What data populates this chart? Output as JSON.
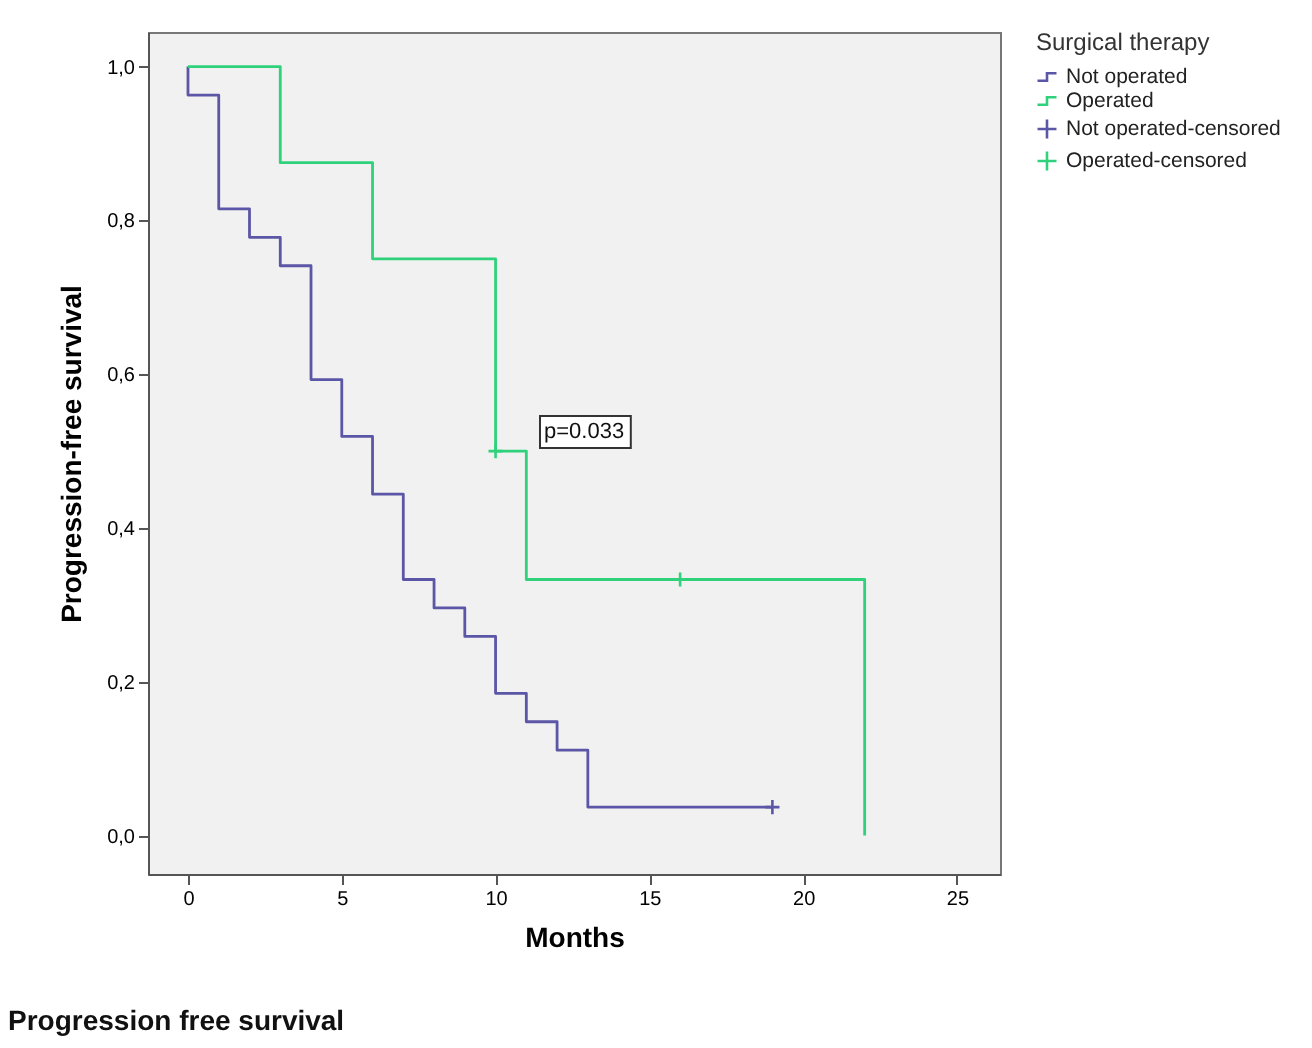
{
  "chart_data": {
    "type": "step",
    "xlabel": "Months",
    "ylabel": "Progression-free survival",
    "legend_title": "Surgical therapy",
    "legend": "top right",
    "grid": false,
    "xlim": [
      -1.3,
      26.4
    ],
    "ylim": [
      -0.05,
      1.045
    ],
    "xticks": [
      0,
      5,
      10,
      15,
      20,
      25
    ],
    "yticks": [
      {
        "value": 0,
        "label": "0,0"
      },
      {
        "value": 0.2,
        "label": "0,2"
      },
      {
        "value": 0.4,
        "label": "0,4"
      },
      {
        "value": 0.6,
        "label": "0,6"
      },
      {
        "value": 0.8,
        "label": "0,8"
      },
      {
        "value": 1,
        "label": "1,0"
      }
    ],
    "series": [
      {
        "name": "Not operated",
        "color": "#5b56a6",
        "x": [
          0,
          0,
          1,
          2,
          3,
          4,
          5,
          6,
          7,
          8,
          9,
          10,
          11,
          12,
          13,
          19
        ],
        "values": [
          1,
          0.963,
          0.815,
          0.778,
          0.741,
          0.593,
          0.519,
          0.444,
          0.333,
          0.296,
          0.259,
          0.185,
          0.148,
          0.111,
          0.037,
          0.037
        ]
      },
      {
        "name": "Operated",
        "color": "#2fd27a",
        "x": [
          0,
          3,
          6,
          10,
          11,
          22,
          22
        ],
        "values": [
          1,
          0.875,
          0.75,
          0.5,
          0.333,
          0.333,
          0
        ]
      },
      {
        "name": "Not operated-censored",
        "type": "scatter",
        "marker": "cross",
        "color": "#5b56a6",
        "x": [
          19
        ],
        "values": [
          0.037
        ]
      },
      {
        "name": "Operated-censored",
        "type": "scatter",
        "marker": "cross",
        "color": "#2fd27a",
        "x": [
          10,
          16
        ],
        "values": [
          0.5,
          0.333
        ]
      }
    ],
    "annotations": [
      "p=0.033",
      "Progression free survival"
    ]
  }
}
